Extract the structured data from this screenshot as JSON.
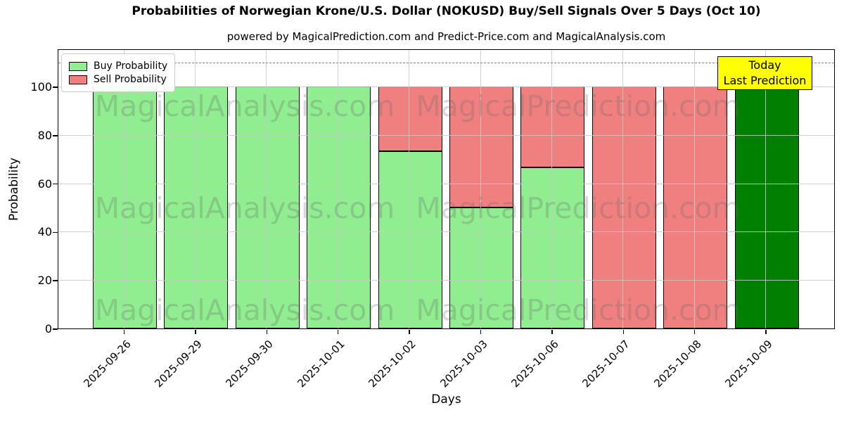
{
  "title": "Probabilities of Norwegian Krone/U.S. Dollar (NOKUSD) Buy/Sell Signals Over 5 Days (Oct 10)",
  "subtitle": "powered by MagicalPrediction.com and Predict-Price.com and MagicalAnalysis.com",
  "legend": {
    "items": [
      {
        "label": "Buy Probability",
        "color": "#90EE90"
      },
      {
        "label": "Sell Probability",
        "color": "#F08080"
      }
    ]
  },
  "annotation_box": {
    "lines": [
      "Today",
      "Last Prediction"
    ],
    "bg_color": "#FFFF00"
  },
  "axes": {
    "xlabel": "Days",
    "ylabel": "Probability",
    "yticks": [
      0,
      20,
      40,
      60,
      80,
      100
    ],
    "ylim": [
      0,
      115.7
    ],
    "dashed_hline": 110,
    "grid": true
  },
  "watermarks": {
    "left_text": "MagicalAnalysis.com",
    "right_text": "MagicalPrediction.com"
  },
  "chart_data": {
    "type": "bar",
    "stacked": true,
    "title": "Probabilities of Norwegian Krone/U.S. Dollar (NOKUSD) Buy/Sell Signals Over 5 Days (Oct 10)",
    "xlabel": "Days",
    "ylabel": "Probability",
    "ylim": [
      0,
      115.7
    ],
    "categories": [
      "2025-09-26",
      "2025-09-29",
      "2025-09-30",
      "2025-10-01",
      "2025-10-02",
      "2025-10-03",
      "2025-10-06",
      "2025-10-07",
      "2025-10-08",
      "2025-10-09"
    ],
    "series": [
      {
        "name": "Buy Probability",
        "color": "#90EE90",
        "values": [
          100,
          100,
          100,
          100,
          73.3,
          50,
          66.7,
          0,
          0,
          100
        ]
      },
      {
        "name": "Sell Probability",
        "color": "#F08080",
        "values": [
          0,
          0,
          0,
          0,
          26.7,
          50,
          33.3,
          100,
          100,
          0
        ]
      }
    ],
    "today_bar": {
      "index": 9,
      "color": "#008000",
      "label": "Today Last Prediction"
    },
    "legend_position": "upper-left",
    "bar_edge_color": "#000000"
  }
}
